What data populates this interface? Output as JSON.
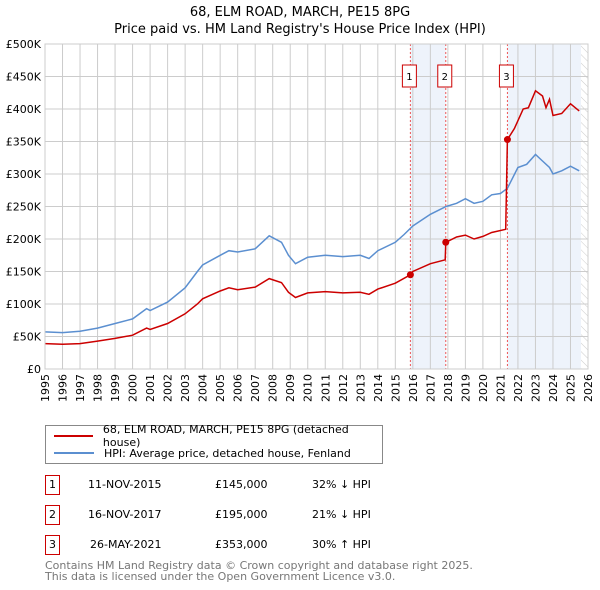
{
  "title": "68, ELM ROAD, MARCH, PE15 8PG",
  "subtitle": "Price paid vs. HM Land Registry's House Price Index (HPI)",
  "chart_data": {
    "type": "line",
    "ylim": [
      0,
      500000
    ],
    "xlim": [
      1995,
      2026
    ],
    "y_ticks": [
      {
        "v": 0,
        "l": "£0"
      },
      {
        "v": 50000,
        "l": "£50K"
      },
      {
        "v": 100000,
        "l": "£100K"
      },
      {
        "v": 150000,
        "l": "£150K"
      },
      {
        "v": 200000,
        "l": "£200K"
      },
      {
        "v": 250000,
        "l": "£250K"
      },
      {
        "v": 300000,
        "l": "£300K"
      },
      {
        "v": 350000,
        "l": "£350K"
      },
      {
        "v": 400000,
        "l": "£400K"
      },
      {
        "v": 450000,
        "l": "£450K"
      },
      {
        "v": 500000,
        "l": "£500K"
      }
    ],
    "x_ticks": [
      "1995",
      "1996",
      "1997",
      "1998",
      "1999",
      "2000",
      "2001",
      "2002",
      "2003",
      "2004",
      "2005",
      "2006",
      "2007",
      "2008",
      "2009",
      "2010",
      "2011",
      "2012",
      "2013",
      "2014",
      "2015",
      "2016",
      "2017",
      "2018",
      "2019",
      "2020",
      "2021",
      "2022",
      "2023",
      "2024",
      "2025",
      "2026"
    ],
    "grid": true,
    "shaded_ranges": [
      [
        2015.86,
        2017.88
      ],
      [
        2021.4,
        2025.6
      ]
    ],
    "forecast_hatch_from": 2025.6,
    "series": [
      {
        "name": "68, ELM ROAD, MARCH, PE15 8PG (detached house)",
        "color": "#cc0000",
        "x": [
          1995,
          1996,
          1997,
          1998,
          1999,
          2000,
          2000.8,
          2001,
          2002,
          2003,
          2003.7,
          2004,
          2005,
          2005.5,
          2006,
          2007,
          2007.8,
          2008.5,
          2008.9,
          2009.3,
          2010,
          2011,
          2012,
          2013,
          2013.5,
          2014,
          2015,
          2015.86,
          2016,
          2017,
          2017.85,
          2017.88,
          2018.5,
          2019,
          2019.5,
          2020,
          2020.5,
          2021.3,
          2021.4,
          2021.8,
          2022.3,
          2022.6,
          2023,
          2023.4,
          2023.6,
          2023.8,
          2024,
          2024.5,
          2025,
          2025.5
        ],
        "y": [
          39000,
          38000,
          39000,
          43000,
          47000,
          52000,
          63000,
          61000,
          70000,
          85000,
          100000,
          108000,
          120000,
          125000,
          122000,
          126000,
          139000,
          133000,
          118000,
          110000,
          117000,
          119000,
          117000,
          118000,
          115000,
          123000,
          132000,
          145000,
          150000,
          162000,
          168000,
          195000,
          203000,
          206000,
          200000,
          204000,
          210000,
          215000,
          353000,
          370000,
          400000,
          402000,
          428000,
          420000,
          402000,
          415000,
          390000,
          393000,
          408000,
          397000
        ]
      },
      {
        "name": "HPI: Average price, detached house, Fenland",
        "color": "#5b8fd0",
        "x": [
          1995,
          1996,
          1997,
          1998,
          1999,
          2000,
          2000.8,
          2001,
          2002,
          2003,
          2003.7,
          2004,
          2005,
          2005.5,
          2006,
          2007,
          2007.8,
          2008.5,
          2008.9,
          2009.3,
          2010,
          2011,
          2012,
          2013,
          2013.5,
          2014,
          2015,
          2015.5,
          2016,
          2017,
          2017.9,
          2018.5,
          2019,
          2019.5,
          2020,
          2020.5,
          2021,
          2021.4,
          2022,
          2022.5,
          2023,
          2023.4,
          2023.8,
          2024,
          2024.5,
          2025,
          2025.5
        ],
        "y": [
          57000,
          56000,
          58000,
          63000,
          70000,
          77000,
          93000,
          90000,
          103000,
          125000,
          150000,
          160000,
          175000,
          182000,
          180000,
          185000,
          205000,
          195000,
          175000,
          162000,
          172000,
          175000,
          173000,
          175000,
          170000,
          182000,
          195000,
          207000,
          220000,
          238000,
          250000,
          255000,
          262000,
          255000,
          258000,
          268000,
          270000,
          278000,
          310000,
          315000,
          330000,
          320000,
          310000,
          300000,
          305000,
          312000,
          305000
        ]
      }
    ],
    "sales": [
      {
        "n": "1",
        "x": 2015.86,
        "price": 145000
      },
      {
        "n": "2",
        "x": 2017.88,
        "price": 195000
      },
      {
        "n": "3",
        "x": 2021.4,
        "price": 353000
      }
    ],
    "legend_position": "below"
  },
  "table": [
    {
      "n": "1",
      "date": "11-NOV-2015",
      "price": "£145,000",
      "hpi": "32% ↓ HPI"
    },
    {
      "n": "2",
      "date": "16-NOV-2017",
      "price": "£195,000",
      "hpi": "21% ↓ HPI"
    },
    {
      "n": "3",
      "date": "26-MAY-2021",
      "price": "£353,000",
      "hpi": "30% ↑ HPI"
    }
  ],
  "footer": [
    "Contains HM Land Registry data © Crown copyright and database right 2025.",
    "This data is licensed under the Open Government Licence v3.0."
  ]
}
